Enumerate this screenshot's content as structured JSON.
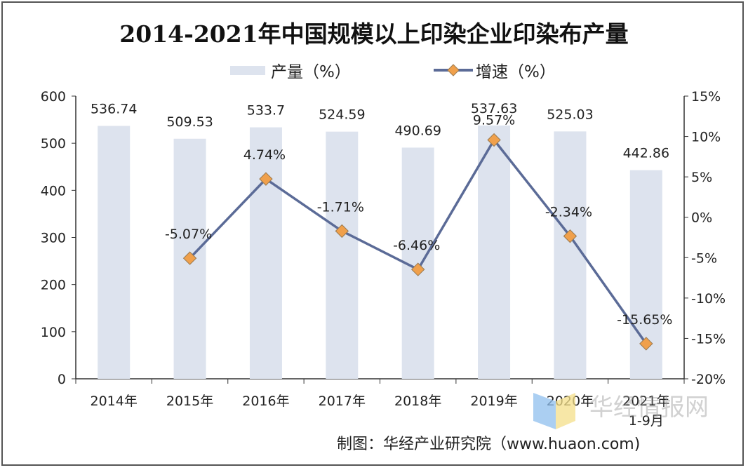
{
  "chart_data": {
    "type": "bar+line",
    "title": "2014-2021年中国规模以上印染企业印染布产量",
    "categories": [
      "2014年",
      "2015年",
      "2016年",
      "2017年",
      "2018年",
      "2019年",
      "2020年",
      "2021年\n1-9月"
    ],
    "category_lines": [
      [
        "2014年"
      ],
      [
        "2015年"
      ],
      [
        "2016年"
      ],
      [
        "2017年"
      ],
      [
        "2018年"
      ],
      [
        "2019年"
      ],
      [
        "2020年"
      ],
      [
        "2021年",
        "1-9月"
      ]
    ],
    "series": [
      {
        "name": "产量（%）",
        "type": "bar",
        "axis": "left",
        "values": [
          536.74,
          509.53,
          533.7,
          524.59,
          490.69,
          537.63,
          525.03,
          442.86
        ],
        "labels": [
          "536.74",
          "509.53",
          "533.7",
          "524.59",
          "490.69",
          "537.63",
          "525.03",
          "442.86"
        ],
        "color": "#dde3ee"
      },
      {
        "name": "增速（%）",
        "type": "line",
        "axis": "right",
        "values": [
          null,
          -5.07,
          4.74,
          -1.71,
          -6.46,
          9.57,
          -2.34,
          -15.65
        ],
        "labels": [
          "",
          "-5.07%",
          "4.74%",
          "-1.71%",
          "-6.46%",
          "9.57%",
          "-2.34%",
          "-15.65%"
        ],
        "color": "#5b6b97",
        "marker_color": "#f0a04b"
      }
    ],
    "y_left": {
      "ylim": [
        0,
        600
      ],
      "ticks": [
        "0",
        "100",
        "200",
        "300",
        "400",
        "500",
        "600"
      ]
    },
    "y_right": {
      "ylim": [
        -20,
        15
      ],
      "ticks": [
        "-20%",
        "-15%",
        "-10%",
        "-5%",
        "0%",
        "5%",
        "10%",
        "15%"
      ]
    },
    "grid": false,
    "legend": "top"
  },
  "source": "制图：华经产业研究院（www.huaon.com)",
  "watermark": "华经情报网 huaon.com"
}
